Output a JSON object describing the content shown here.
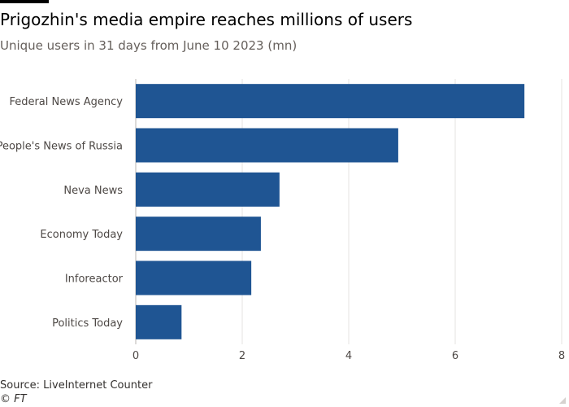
{
  "chart_data": {
    "type": "bar",
    "orientation": "horizontal",
    "title": "Prigozhin's media empire reaches millions of users",
    "subtitle": "Unique users in 31 days from June 10 2023 (mn)",
    "categories": [
      "Federal News Agency",
      "People's News of Russia",
      "Neva News",
      "Economy Today",
      "Inforeactor",
      "Politics Today"
    ],
    "values": [
      7.3,
      4.93,
      2.7,
      2.35,
      2.17,
      0.86
    ],
    "xlim": [
      0,
      8
    ],
    "xticks": [
      0,
      2,
      4,
      6,
      8
    ],
    "grid": true,
    "legend": "none",
    "bar_color": "#1f5593",
    "source": "Source: LiveInternet Counter",
    "credit": "© FT"
  }
}
